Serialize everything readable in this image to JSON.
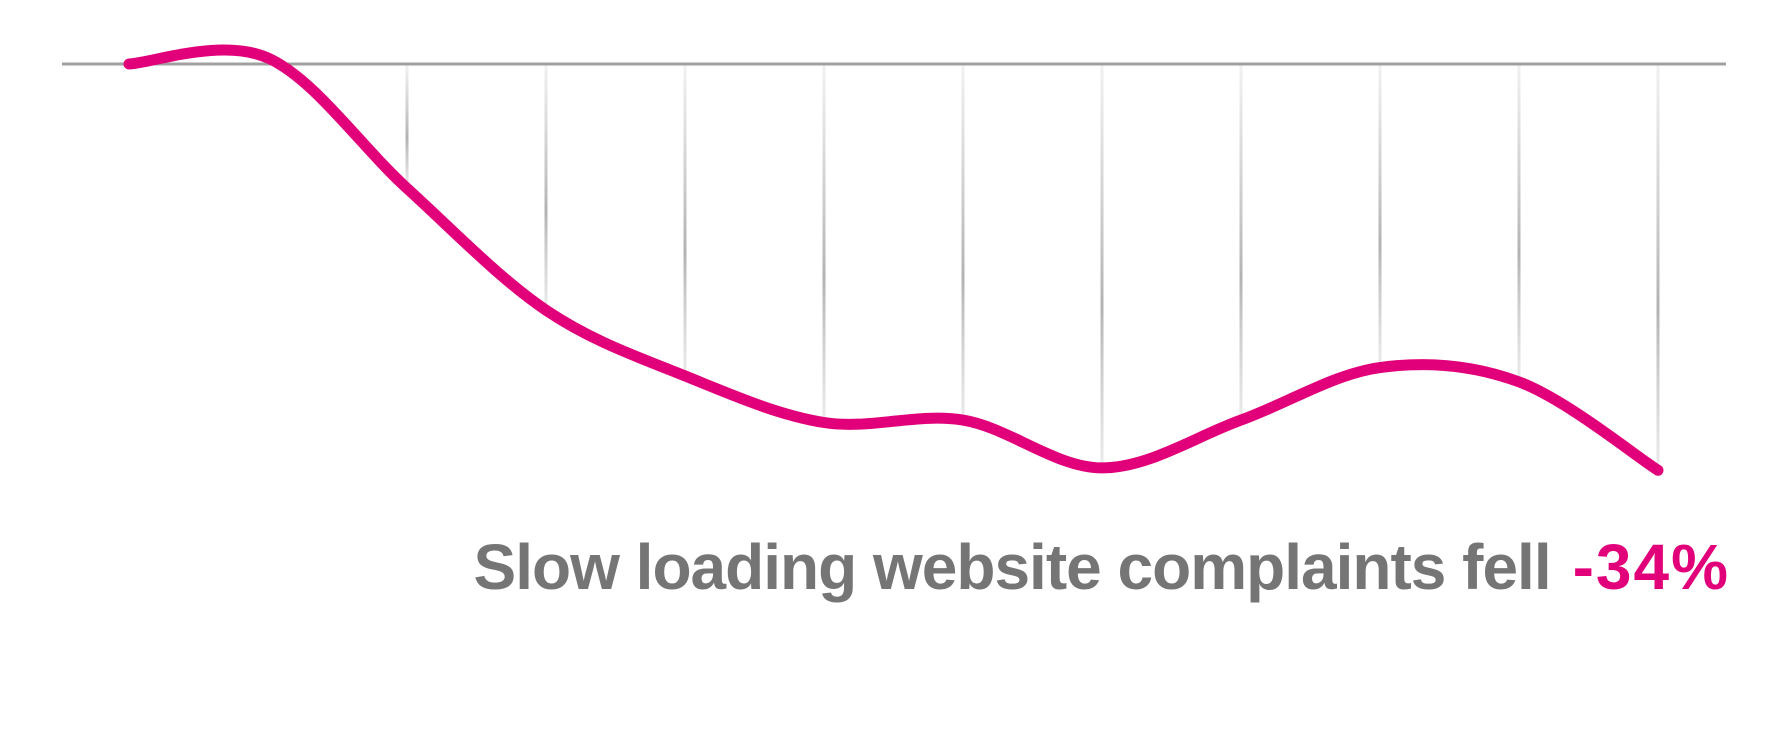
{
  "chart_data": {
    "type": "line",
    "title": "",
    "xlabel": "",
    "ylabel": "",
    "x": [
      1,
      2,
      3,
      4,
      5,
      6,
      7,
      8,
      9,
      10,
      11,
      12
    ],
    "values": [
      0,
      0.5,
      -10.4,
      -20.6,
      -26.1,
      -30.0,
      -29.8,
      -33.8,
      -29.8,
      -25.4,
      -26.6,
      -34.0
    ],
    "unit": "% change",
    "ylim": [
      -34,
      2
    ],
    "baseline": 0,
    "grid": "vertical drop lines from baseline to each point",
    "line_color": "#e2007a",
    "baseline_color": "#a0a0a0",
    "annotation": {
      "text": "Slow loading website complaints fell",
      "value": "-34%",
      "text_color": "#757575",
      "value_color": "#e2007a"
    }
  }
}
